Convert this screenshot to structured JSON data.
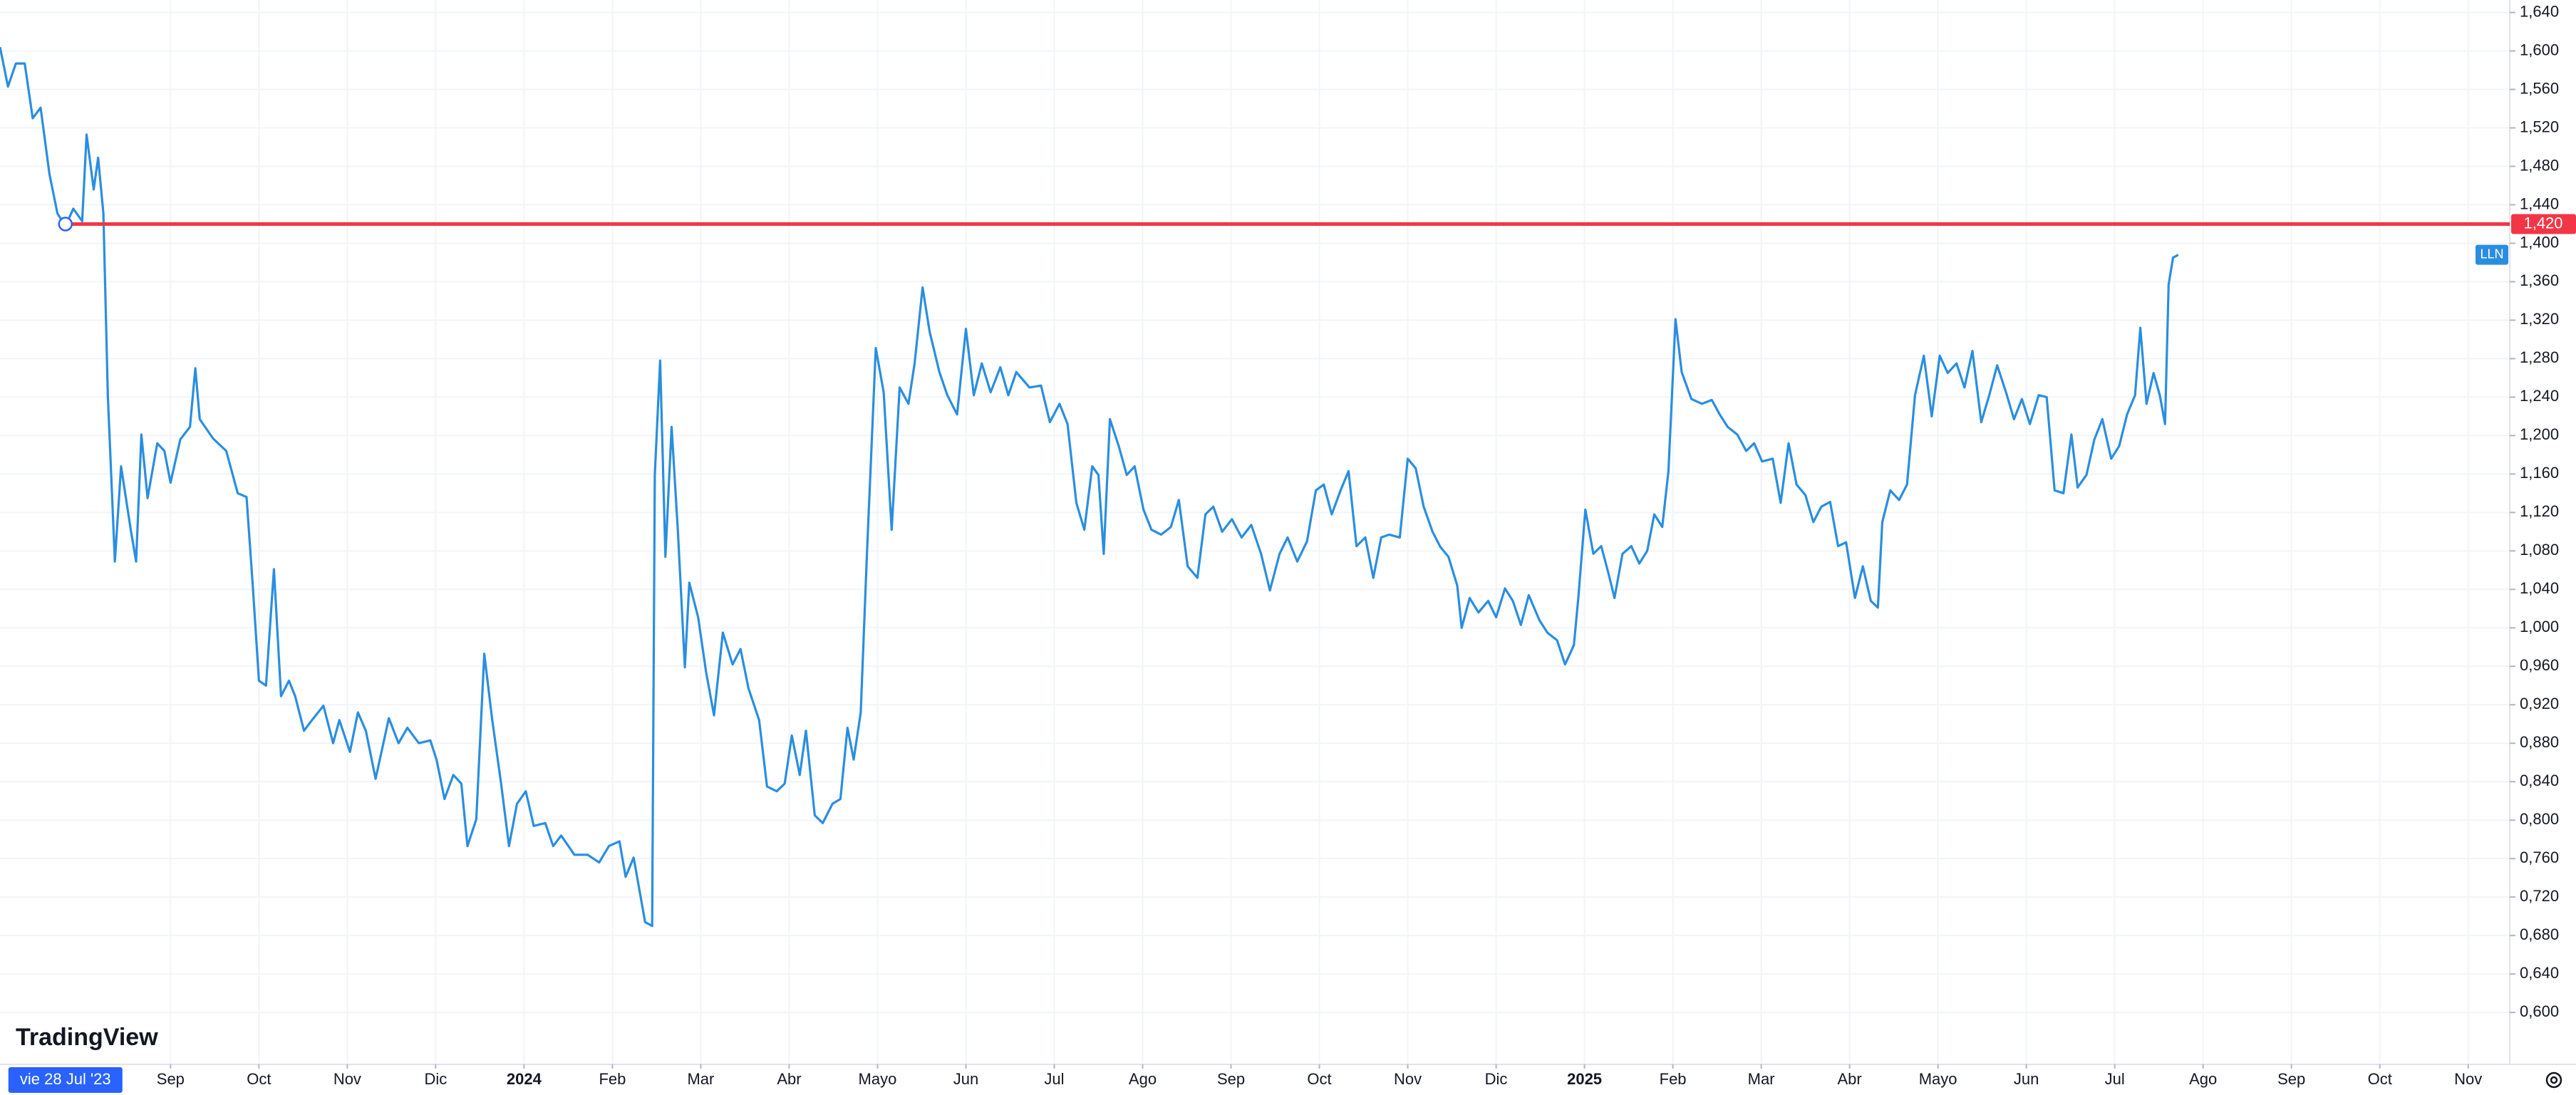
{
  "chart_data": {
    "type": "line",
    "watermark": "TradingView",
    "crosshair": {
      "x": -0.19,
      "label": "vie 28 Jul '23"
    },
    "hline": {
      "value": 1.42,
      "label": "1,420",
      "color": "#f23645"
    },
    "xlim": [
      -0.93,
      27.47
    ],
    "ylim": [
      0.546,
      1.653
    ],
    "grid": true,
    "xticks": [
      {
        "value": 1,
        "label": "Sep"
      },
      {
        "value": 2,
        "label": "Oct"
      },
      {
        "value": 3,
        "label": "Nov"
      },
      {
        "value": 4,
        "label": "Dic"
      },
      {
        "value": 5,
        "label": "2024"
      },
      {
        "value": 6,
        "label": "Feb"
      },
      {
        "value": 7,
        "label": "Mar"
      },
      {
        "value": 8,
        "label": "Abr"
      },
      {
        "value": 9,
        "label": "Mayo"
      },
      {
        "value": 10,
        "label": "Jun"
      },
      {
        "value": 11,
        "label": "Jul"
      },
      {
        "value": 12,
        "label": "Ago"
      },
      {
        "value": 13,
        "label": "Sep"
      },
      {
        "value": 14,
        "label": "Oct"
      },
      {
        "value": 15,
        "label": "Nov"
      },
      {
        "value": 16,
        "label": "Dic"
      },
      {
        "value": 17,
        "label": "2025"
      },
      {
        "value": 18,
        "label": "Feb"
      },
      {
        "value": 19,
        "label": "Mar"
      },
      {
        "value": 20,
        "label": "Abr"
      },
      {
        "value": 21,
        "label": "Mayo"
      },
      {
        "value": 22,
        "label": "Jun"
      },
      {
        "value": 23,
        "label": "Jul"
      },
      {
        "value": 24,
        "label": "Ago"
      },
      {
        "value": 25,
        "label": "Sep"
      },
      {
        "value": 26,
        "label": "Oct"
      },
      {
        "value": 27,
        "label": "Nov"
      }
    ],
    "yticks": [
      {
        "value": 0.6,
        "label": "0,600"
      },
      {
        "value": 0.64,
        "label": "0,640"
      },
      {
        "value": 0.68,
        "label": "0,680"
      },
      {
        "value": 0.72,
        "label": "0,720"
      },
      {
        "value": 0.76,
        "label": "0,760"
      },
      {
        "value": 0.8,
        "label": "0,800"
      },
      {
        "value": 0.84,
        "label": "0,840"
      },
      {
        "value": 0.88,
        "label": "0,880"
      },
      {
        "value": 0.92,
        "label": "0,920"
      },
      {
        "value": 0.96,
        "label": "0,960"
      },
      {
        "value": 1.0,
        "label": "1,000"
      },
      {
        "value": 1.04,
        "label": "1,040"
      },
      {
        "value": 1.08,
        "label": "1,080"
      },
      {
        "value": 1.12,
        "label": "1,120"
      },
      {
        "value": 1.16,
        "label": "1,160"
      },
      {
        "value": 1.2,
        "label": "1,200"
      },
      {
        "value": 1.24,
        "label": "1,240"
      },
      {
        "value": 1.28,
        "label": "1,280"
      },
      {
        "value": 1.32,
        "label": "1,320"
      },
      {
        "value": 1.36,
        "label": "1,360"
      },
      {
        "value": 1.4,
        "label": "1,400"
      },
      {
        "value": 1.44,
        "label": "1,440"
      },
      {
        "value": 1.48,
        "label": "1,480"
      },
      {
        "value": 1.52,
        "label": "1,520"
      },
      {
        "value": 1.56,
        "label": "1,560"
      },
      {
        "value": 1.6,
        "label": "1,600"
      },
      {
        "value": 1.64,
        "label": "1,640"
      }
    ],
    "x": [
      -0.93,
      -0.84,
      -0.75,
      -0.65,
      -0.56,
      -0.47,
      -0.37,
      -0.28,
      -0.19,
      -0.1,
      0.0,
      0.05,
      0.13,
      0.18,
      0.24,
      0.29,
      0.37,
      0.44,
      0.55,
      0.61,
      0.67,
      0.74,
      0.85,
      0.93,
      1.0,
      1.11,
      1.22,
      1.28,
      1.33,
      1.48,
      1.63,
      1.76,
      1.86,
      1.93,
      2.0,
      2.08,
      2.17,
      2.25,
      2.34,
      2.41,
      2.51,
      2.6,
      2.73,
      2.84,
      2.91,
      3.03,
      3.12,
      3.21,
      3.32,
      3.47,
      3.58,
      3.68,
      3.81,
      3.94,
      4.01,
      4.1,
      4.2,
      4.29,
      4.36,
      4.46,
      4.55,
      4.64,
      4.74,
      4.83,
      4.92,
      5.02,
      5.11,
      5.24,
      5.33,
      5.42,
      5.57,
      5.72,
      5.85,
      5.96,
      6.08,
      6.15,
      6.24,
      6.32,
      6.37,
      6.45,
      6.48,
      6.54,
      6.6,
      6.67,
      6.74,
      6.82,
      6.87,
      6.97,
      7.06,
      7.15,
      7.25,
      7.36,
      7.45,
      7.54,
      7.66,
      7.75,
      7.86,
      7.95,
      8.03,
      8.12,
      8.19,
      8.29,
      8.38,
      8.49,
      8.58,
      8.66,
      8.73,
      8.81,
      8.88,
      8.98,
      9.07,
      9.16,
      9.25,
      9.35,
      9.42,
      9.51,
      9.59,
      9.7,
      9.79,
      9.9,
      10.0,
      10.09,
      10.18,
      10.28,
      10.39,
      10.48,
      10.57,
      10.72,
      10.85,
      10.95,
      11.06,
      11.15,
      11.25,
      11.34,
      11.43,
      11.5,
      11.56,
      11.63,
      11.73,
      11.82,
      11.91,
      12.01,
      12.1,
      12.21,
      12.32,
      12.41,
      12.51,
      12.62,
      12.71,
      12.8,
      12.9,
      13.01,
      13.12,
      13.23,
      13.34,
      13.44,
      13.55,
      13.64,
      13.75,
      13.86,
      13.96,
      14.05,
      14.14,
      14.24,
      14.33,
      14.42,
      14.52,
      14.61,
      14.7,
      14.79,
      14.91,
      15.0,
      15.09,
      15.18,
      15.28,
      15.37,
      15.46,
      15.56,
      15.61,
      15.7,
      15.8,
      15.91,
      16.0,
      16.1,
      16.19,
      16.28,
      16.37,
      16.49,
      16.58,
      16.69,
      16.78,
      16.88,
      16.93,
      17.01,
      17.1,
      17.19,
      17.27,
      17.34,
      17.43,
      17.53,
      17.62,
      17.71,
      17.79,
      17.88,
      17.95,
      18.03,
      18.1,
      18.21,
      18.33,
      18.44,
      18.53,
      18.62,
      18.73,
      18.83,
      18.92,
      19.01,
      19.13,
      19.22,
      19.31,
      19.4,
      19.5,
      19.59,
      19.68,
      19.78,
      19.87,
      19.96,
      20.06,
      20.15,
      20.24,
      20.32,
      20.37,
      20.46,
      20.56,
      20.65,
      20.74,
      20.84,
      20.93,
      21.02,
      21.11,
      21.21,
      21.3,
      21.39,
      21.49,
      21.58,
      21.67,
      21.77,
      21.86,
      21.95,
      22.04,
      22.14,
      22.23,
      22.32,
      22.42,
      22.51,
      22.58,
      22.68,
      22.77,
      22.86,
      22.96,
      23.05,
      23.14,
      23.23,
      23.29,
      23.36,
      23.44,
      23.51,
      23.57,
      23.61,
      23.66,
      23.72
    ],
    "series": [
      {
        "name": "LLN",
        "color": "#2a8ee0",
        "values": [
          1.604,
          1.563,
          1.587,
          1.587,
          1.53,
          1.541,
          1.472,
          1.431,
          1.418,
          1.436,
          1.423,
          1.513,
          1.456,
          1.489,
          1.431,
          1.242,
          1.069,
          1.168,
          1.102,
          1.069,
          1.201,
          1.135,
          1.192,
          1.184,
          1.151,
          1.196,
          1.209,
          1.27,
          1.217,
          1.197,
          1.184,
          1.14,
          1.136,
          1.044,
          0.945,
          0.94,
          1.061,
          0.929,
          0.945,
          0.929,
          0.893,
          0.904,
          0.919,
          0.88,
          0.904,
          0.871,
          0.912,
          0.893,
          0.843,
          0.906,
          0.88,
          0.896,
          0.88,
          0.883,
          0.863,
          0.822,
          0.847,
          0.838,
          0.773,
          0.801,
          0.973,
          0.904,
          0.838,
          0.773,
          0.817,
          0.83,
          0.794,
          0.797,
          0.773,
          0.784,
          0.764,
          0.764,
          0.756,
          0.773,
          0.778,
          0.741,
          0.761,
          0.72,
          0.694,
          0.69,
          1.159,
          1.278,
          1.074,
          1.209,
          1.102,
          0.959,
          1.047,
          1.011,
          0.954,
          0.909,
          0.995,
          0.962,
          0.978,
          0.937,
          0.904,
          0.835,
          0.83,
          0.838,
          0.888,
          0.847,
          0.893,
          0.805,
          0.797,
          0.817,
          0.822,
          0.896,
          0.863,
          0.912,
          1.077,
          1.291,
          1.245,
          1.102,
          1.25,
          1.233,
          1.275,
          1.354,
          1.308,
          1.266,
          1.242,
          1.222,
          1.311,
          1.242,
          1.275,
          1.245,
          1.271,
          1.242,
          1.266,
          1.25,
          1.252,
          1.214,
          1.233,
          1.212,
          1.13,
          1.102,
          1.168,
          1.159,
          1.077,
          1.217,
          1.189,
          1.159,
          1.168,
          1.123,
          1.102,
          1.097,
          1.105,
          1.133,
          1.064,
          1.052,
          1.118,
          1.126,
          1.1,
          1.113,
          1.094,
          1.107,
          1.077,
          1.039,
          1.077,
          1.094,
          1.069,
          1.09,
          1.143,
          1.149,
          1.118,
          1.143,
          1.163,
          1.085,
          1.094,
          1.052,
          1.094,
          1.097,
          1.094,
          1.176,
          1.166,
          1.126,
          1.1,
          1.084,
          1.074,
          1.044,
          1.0,
          1.031,
          1.016,
          1.028,
          1.011,
          1.041,
          1.028,
          1.003,
          1.034,
          1.008,
          0.995,
          0.987,
          0.962,
          0.982,
          1.031,
          1.123,
          1.077,
          1.085,
          1.057,
          1.031,
          1.077,
          1.085,
          1.067,
          1.08,
          1.118,
          1.105,
          1.163,
          1.321,
          1.266,
          1.238,
          1.233,
          1.237,
          1.222,
          1.209,
          1.201,
          1.184,
          1.192,
          1.173,
          1.176,
          1.13,
          1.192,
          1.149,
          1.138,
          1.11,
          1.126,
          1.131,
          1.085,
          1.089,
          1.031,
          1.064,
          1.028,
          1.021,
          1.11,
          1.143,
          1.133,
          1.149,
          1.242,
          1.283,
          1.22,
          1.283,
          1.265,
          1.275,
          1.25,
          1.288,
          1.214,
          1.242,
          1.273,
          1.245,
          1.217,
          1.238,
          1.212,
          1.242,
          1.24,
          1.143,
          1.14,
          1.201,
          1.146,
          1.159,
          1.196,
          1.217,
          1.176,
          1.189,
          1.222,
          1.242,
          1.312,
          1.233,
          1.265,
          1.242,
          1.212,
          1.357,
          1.385,
          1.388
        ]
      }
    ]
  }
}
